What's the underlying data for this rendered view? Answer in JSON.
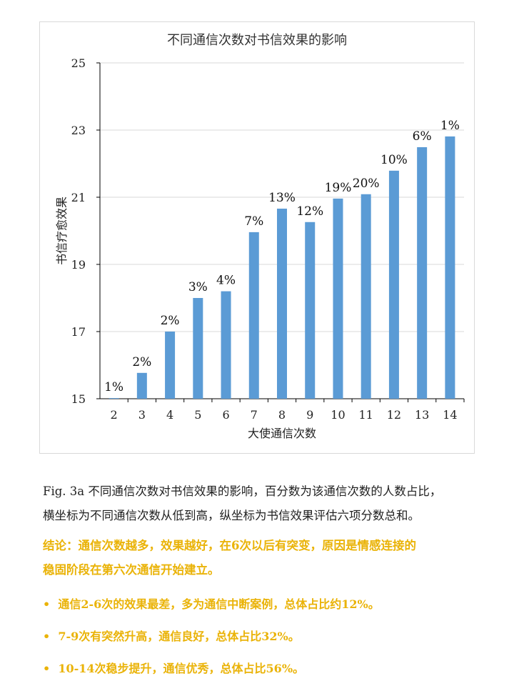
{
  "chart_data": {
    "type": "bar",
    "title": "不同通信次数对书信效果的影响",
    "xlabel": "大使通信次数",
    "ylabel": "书信疗愈效果",
    "categories": [
      "2",
      "3",
      "4",
      "5",
      "6",
      "7",
      "8",
      "9",
      "10",
      "11",
      "12",
      "13",
      "14"
    ],
    "values": [
      15.02,
      15.77,
      17.0,
      18.0,
      18.2,
      19.96,
      20.66,
      20.26,
      20.96,
      21.09,
      21.79,
      22.49,
      22.81
    ],
    "data_labels": [
      "1%",
      "2%",
      "2%",
      "3%",
      "4%",
      "7%",
      "13%",
      "12%",
      "19%",
      "20%",
      "10%",
      "6%",
      "1%"
    ],
    "ylim": [
      15,
      25
    ],
    "yticks": [
      "15",
      "17",
      "19",
      "21",
      "23",
      "25"
    ],
    "grid": true,
    "bar_color": "#5b9bd5"
  },
  "caption": {
    "line1": "Fig. 3a 不同通信次数对书信效果的影响，百分数为该通信次数的人数占比，",
    "line2": "横坐标为不同通信次数从低到高，纵坐标为书信效果评估六项分数总和。"
  },
  "conclusion": {
    "line1": "结论：通信次数越多，效果越好，在6次以后有突变，原因是情感连接的",
    "line2": "稳固阶段在第六次通信开始建立。"
  },
  "bullets": [
    "通信2-6次的效果最差，多为通信中断案例，总体占比约12%。",
    "7-9次有突然升高，通信良好，总体占比32%。",
    "10-14次稳步提升，通信优秀，总体占比56%。"
  ]
}
